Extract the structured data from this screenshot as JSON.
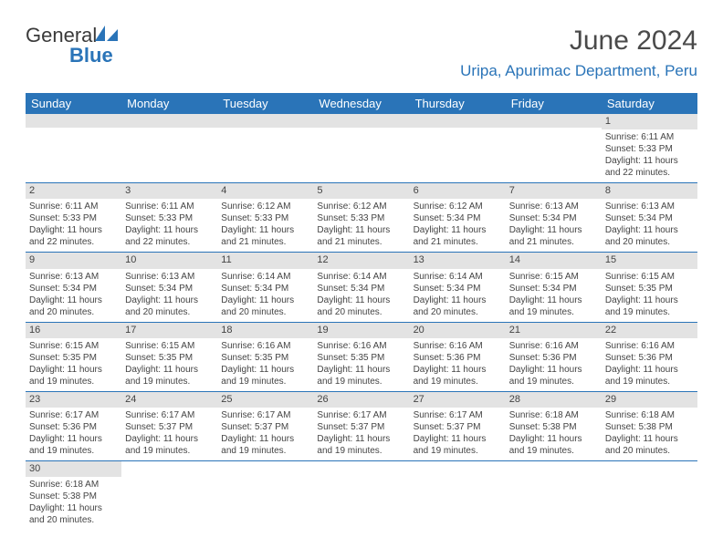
{
  "brand": {
    "word1": "General",
    "word2": "Blue",
    "icon_color": "#2a74b8",
    "text_color_dark": "#3a3a3a",
    "text_color_blue": "#2a74b8"
  },
  "title": "June 2024",
  "location": "Uripa, Apurimac Department, Peru",
  "colors": {
    "header_bg": "#2a74b8",
    "header_fg": "#ffffff",
    "daybar_bg": "#e3e3e3",
    "cell_border": "#2a74b8",
    "text": "#444444"
  },
  "weekdays": [
    "Sunday",
    "Monday",
    "Tuesday",
    "Wednesday",
    "Thursday",
    "Friday",
    "Saturday"
  ],
  "weeks": [
    [
      {
        "empty": true
      },
      {
        "empty": true
      },
      {
        "empty": true
      },
      {
        "empty": true
      },
      {
        "empty": true
      },
      {
        "empty": true
      },
      {
        "day": 1,
        "sunrise": "6:11 AM",
        "sunset": "5:33 PM",
        "daylight": "11 hours and 22 minutes."
      }
    ],
    [
      {
        "day": 2,
        "sunrise": "6:11 AM",
        "sunset": "5:33 PM",
        "daylight": "11 hours and 22 minutes."
      },
      {
        "day": 3,
        "sunrise": "6:11 AM",
        "sunset": "5:33 PM",
        "daylight": "11 hours and 22 minutes."
      },
      {
        "day": 4,
        "sunrise": "6:12 AM",
        "sunset": "5:33 PM",
        "daylight": "11 hours and 21 minutes."
      },
      {
        "day": 5,
        "sunrise": "6:12 AM",
        "sunset": "5:33 PM",
        "daylight": "11 hours and 21 minutes."
      },
      {
        "day": 6,
        "sunrise": "6:12 AM",
        "sunset": "5:34 PM",
        "daylight": "11 hours and 21 minutes."
      },
      {
        "day": 7,
        "sunrise": "6:13 AM",
        "sunset": "5:34 PM",
        "daylight": "11 hours and 21 minutes."
      },
      {
        "day": 8,
        "sunrise": "6:13 AM",
        "sunset": "5:34 PM",
        "daylight": "11 hours and 20 minutes."
      }
    ],
    [
      {
        "day": 9,
        "sunrise": "6:13 AM",
        "sunset": "5:34 PM",
        "daylight": "11 hours and 20 minutes."
      },
      {
        "day": 10,
        "sunrise": "6:13 AM",
        "sunset": "5:34 PM",
        "daylight": "11 hours and 20 minutes."
      },
      {
        "day": 11,
        "sunrise": "6:14 AM",
        "sunset": "5:34 PM",
        "daylight": "11 hours and 20 minutes."
      },
      {
        "day": 12,
        "sunrise": "6:14 AM",
        "sunset": "5:34 PM",
        "daylight": "11 hours and 20 minutes."
      },
      {
        "day": 13,
        "sunrise": "6:14 AM",
        "sunset": "5:34 PM",
        "daylight": "11 hours and 20 minutes."
      },
      {
        "day": 14,
        "sunrise": "6:15 AM",
        "sunset": "5:34 PM",
        "daylight": "11 hours and 19 minutes."
      },
      {
        "day": 15,
        "sunrise": "6:15 AM",
        "sunset": "5:35 PM",
        "daylight": "11 hours and 19 minutes."
      }
    ],
    [
      {
        "day": 16,
        "sunrise": "6:15 AM",
        "sunset": "5:35 PM",
        "daylight": "11 hours and 19 minutes."
      },
      {
        "day": 17,
        "sunrise": "6:15 AM",
        "sunset": "5:35 PM",
        "daylight": "11 hours and 19 minutes."
      },
      {
        "day": 18,
        "sunrise": "6:16 AM",
        "sunset": "5:35 PM",
        "daylight": "11 hours and 19 minutes."
      },
      {
        "day": 19,
        "sunrise": "6:16 AM",
        "sunset": "5:35 PM",
        "daylight": "11 hours and 19 minutes."
      },
      {
        "day": 20,
        "sunrise": "6:16 AM",
        "sunset": "5:36 PM",
        "daylight": "11 hours and 19 minutes."
      },
      {
        "day": 21,
        "sunrise": "6:16 AM",
        "sunset": "5:36 PM",
        "daylight": "11 hours and 19 minutes."
      },
      {
        "day": 22,
        "sunrise": "6:16 AM",
        "sunset": "5:36 PM",
        "daylight": "11 hours and 19 minutes."
      }
    ],
    [
      {
        "day": 23,
        "sunrise": "6:17 AM",
        "sunset": "5:36 PM",
        "daylight": "11 hours and 19 minutes."
      },
      {
        "day": 24,
        "sunrise": "6:17 AM",
        "sunset": "5:37 PM",
        "daylight": "11 hours and 19 minutes."
      },
      {
        "day": 25,
        "sunrise": "6:17 AM",
        "sunset": "5:37 PM",
        "daylight": "11 hours and 19 minutes."
      },
      {
        "day": 26,
        "sunrise": "6:17 AM",
        "sunset": "5:37 PM",
        "daylight": "11 hours and 19 minutes."
      },
      {
        "day": 27,
        "sunrise": "6:17 AM",
        "sunset": "5:37 PM",
        "daylight": "11 hours and 19 minutes."
      },
      {
        "day": 28,
        "sunrise": "6:18 AM",
        "sunset": "5:38 PM",
        "daylight": "11 hours and 19 minutes."
      },
      {
        "day": 29,
        "sunrise": "6:18 AM",
        "sunset": "5:38 PM",
        "daylight": "11 hours and 20 minutes."
      }
    ],
    [
      {
        "day": 30,
        "sunrise": "6:18 AM",
        "sunset": "5:38 PM",
        "daylight": "11 hours and 20 minutes."
      },
      {
        "blank": true
      },
      {
        "blank": true
      },
      {
        "blank": true
      },
      {
        "blank": true
      },
      {
        "blank": true
      },
      {
        "blank": true
      }
    ]
  ],
  "labels": {
    "sunrise": "Sunrise:",
    "sunset": "Sunset:",
    "daylight": "Daylight:"
  }
}
